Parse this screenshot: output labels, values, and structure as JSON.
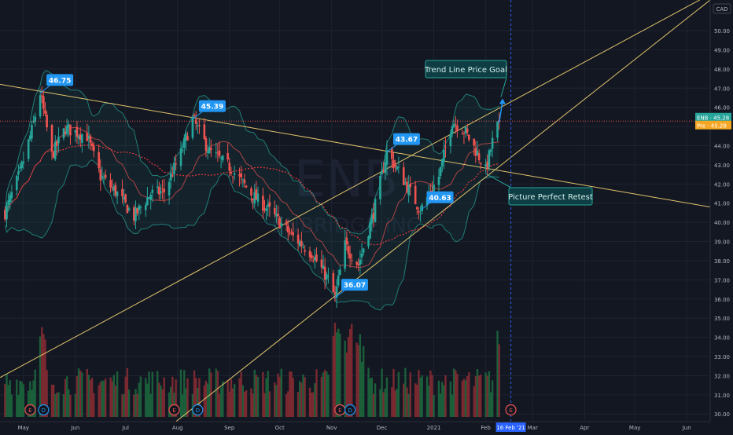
{
  "currency": "CAD",
  "watermark": {
    "ticker": "ENB",
    "name": "ENBRIDGE INC"
  },
  "price_tags": [
    {
      "label": "ENB · 45.28",
      "value": 45.28,
      "color": "#26a69a"
    },
    {
      "label": "Pre · 45.28",
      "value": 45.28,
      "color": "#f5a623"
    }
  ],
  "time_tag": "16 Feb '21",
  "event_markers": [
    {
      "date": "2020-05-05",
      "letter": "E",
      "kind": "earnings"
    },
    {
      "date": "2020-05-13",
      "letter": "D",
      "kind": "dividend"
    },
    {
      "date": "2020-07-30",
      "letter": "E",
      "kind": "earnings"
    },
    {
      "date": "2020-08-13",
      "letter": "D",
      "kind": "dividend"
    },
    {
      "date": "2020-11-06",
      "letter": "E",
      "kind": "earnings"
    },
    {
      "date": "2020-11-12",
      "letter": "D",
      "kind": "dividend"
    },
    {
      "date": "2021-02-16",
      "letter": "E",
      "kind": "earnings"
    }
  ],
  "annotations": [
    {
      "text": "Trend Line Price Goal",
      "style": "teal"
    },
    {
      "text": "Picture Perfect Retest",
      "style": "teal"
    }
  ],
  "chart_data": {
    "type": "candlestick",
    "x_range": [
      "2020-04-17",
      "2021-06-15"
    ],
    "y_range": [
      29.6,
      51.6
    ],
    "y_ticks": [
      30,
      31,
      32,
      33,
      34,
      35,
      36,
      37,
      38,
      39,
      40,
      41,
      42,
      43,
      44,
      45,
      46,
      47,
      48,
      49,
      50
    ],
    "x_ticks": [
      {
        "date": "2020-05-01",
        "label": "May"
      },
      {
        "date": "2020-06-01",
        "label": "Jun"
      },
      {
        "date": "2020-07-01",
        "label": "Jul"
      },
      {
        "date": "2020-08-01",
        "label": "Aug"
      },
      {
        "date": "2020-09-01",
        "label": "Sep"
      },
      {
        "date": "2020-10-01",
        "label": "Oct"
      },
      {
        "date": "2020-11-01",
        "label": "Nov"
      },
      {
        "date": "2020-12-01",
        "label": "Dec"
      },
      {
        "date": "2021-01-01",
        "label": "2021"
      },
      {
        "date": "2021-02-01",
        "label": "Feb"
      },
      {
        "date": "2021-03-01",
        "label": "Mar"
      },
      {
        "date": "2021-04-01",
        "label": "Apr"
      },
      {
        "date": "2021-05-01",
        "label": "May"
      },
      {
        "date": "2021-06-01",
        "label": "Jun"
      }
    ],
    "price_keypoints": [
      [
        "2020-04-20",
        40.5
      ],
      [
        "2020-04-29",
        42.6
      ],
      [
        "2020-05-06",
        44.8
      ],
      [
        "2020-05-11",
        46.75
      ],
      [
        "2020-05-18",
        43.5
      ],
      [
        "2020-05-26",
        44.9
      ],
      [
        "2020-06-08",
        44.5
      ],
      [
        "2020-06-16",
        42.4
      ],
      [
        "2020-06-25",
        41.6
      ],
      [
        "2020-07-06",
        40.3
      ],
      [
        "2020-07-16",
        41.5
      ],
      [
        "2020-07-24",
        41.6
      ],
      [
        "2020-08-03",
        43.6
      ],
      [
        "2020-08-10",
        45.39
      ],
      [
        "2020-08-20",
        43.7
      ],
      [
        "2020-09-01",
        42.9
      ],
      [
        "2020-09-15",
        41.4
      ],
      [
        "2020-09-25",
        40.6
      ],
      [
        "2020-10-07",
        39.4
      ],
      [
        "2020-10-20",
        38.4
      ],
      [
        "2020-10-30",
        37.0
      ],
      [
        "2020-11-03",
        36.07
      ],
      [
        "2020-11-09",
        38.8
      ],
      [
        "2020-11-17",
        37.8
      ],
      [
        "2020-11-26",
        40.5
      ],
      [
        "2020-12-04",
        43.67
      ],
      [
        "2020-12-14",
        42.2
      ],
      [
        "2020-12-24",
        40.63
      ],
      [
        "2021-01-04",
        42.4
      ],
      [
        "2021-01-12",
        45.3
      ],
      [
        "2021-01-20",
        44.7
      ],
      [
        "2021-01-27",
        43.6
      ],
      [
        "2021-02-01",
        42.7
      ],
      [
        "2021-02-05",
        44.2
      ],
      [
        "2021-02-09",
        45.3
      ]
    ],
    "price_labels": [
      {
        "date": "2020-05-11",
        "value": 46.75,
        "label": "46.75"
      },
      {
        "date": "2020-08-10",
        "value": 45.39,
        "label": "45.39"
      },
      {
        "date": "2020-11-03",
        "value": 36.07,
        "label": "36.07"
      },
      {
        "date": "2020-12-04",
        "value": 43.67,
        "label": "43.67"
      },
      {
        "date": "2020-12-24",
        "value": 40.63,
        "label": "40.63"
      }
    ],
    "last_price": 45.28,
    "trend_lines": [
      {
        "from": [
          "2020-04-17",
          47.2
        ],
        "to": [
          "2021-06-15",
          40.8
        ],
        "color": "#e0c36c"
      },
      {
        "from": [
          "2020-04-17",
          31.9
        ],
        "to": [
          "2021-06-15",
          51.9
        ],
        "color": "#e0c36c"
      },
      {
        "from": [
          "2020-07-31",
          29.6
        ],
        "to": [
          "2021-06-15",
          51.6
        ],
        "color": "#e0c36c"
      }
    ],
    "volume_range": [
      0,
      40
    ],
    "vertical_marker": {
      "date": "2021-02-16",
      "style": "dashed"
    },
    "target_arrow": {
      "from": [
        "2021-02-09",
        45.2
      ],
      "to": [
        "2021-02-11",
        46.3
      ]
    },
    "series": [
      {
        "name": "price",
        "color_up": "#26a69a",
        "color_down": "#ef5350"
      },
      {
        "name": "bollinger",
        "color": "#26a69a"
      },
      {
        "name": "ma",
        "color": "#ef5350"
      }
    ]
  }
}
